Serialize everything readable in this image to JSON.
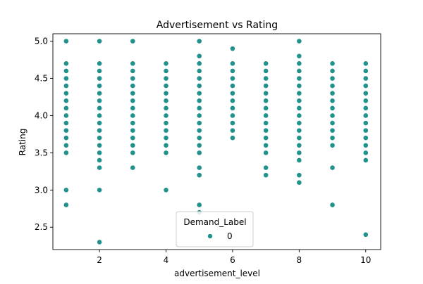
{
  "chart_data": {
    "type": "scatter",
    "title": "Advertisement vs Rating",
    "xlabel": "advertisement_level",
    "ylabel": "Rating",
    "xlim": [
      0.6,
      10.45
    ],
    "ylim": [
      2.2,
      5.1
    ],
    "x_ticks": [
      2,
      4,
      6,
      8,
      10
    ],
    "x_tick_labels": [
      "2",
      "4",
      "6",
      "8",
      "10"
    ],
    "y_ticks": [
      2.5,
      3.0,
      3.5,
      4.0,
      4.5,
      5.0
    ],
    "y_tick_labels": [
      "2.5",
      "3.0",
      "3.5",
      "4.0",
      "4.5",
      "5.0"
    ],
    "grid": false,
    "legend": {
      "title": "Demand_Label",
      "placement": "lower center",
      "entries": [
        {
          "label": "0",
          "color": "#21918c"
        }
      ]
    },
    "point_color": "#21918c",
    "series": [
      {
        "name": "0",
        "points": [
          {
            "x": 1,
            "y": 5.0
          },
          {
            "x": 1,
            "y": 4.7
          },
          {
            "x": 1,
            "y": 4.6
          },
          {
            "x": 1,
            "y": 4.5
          },
          {
            "x": 1,
            "y": 4.4
          },
          {
            "x": 1,
            "y": 4.3
          },
          {
            "x": 1,
            "y": 4.2
          },
          {
            "x": 1,
            "y": 4.1
          },
          {
            "x": 1,
            "y": 4.0
          },
          {
            "x": 1,
            "y": 3.9
          },
          {
            "x": 1,
            "y": 3.8
          },
          {
            "x": 1,
            "y": 3.7
          },
          {
            "x": 1,
            "y": 3.6
          },
          {
            "x": 1,
            "y": 3.5
          },
          {
            "x": 1,
            "y": 3.0
          },
          {
            "x": 1,
            "y": 2.8
          },
          {
            "x": 2,
            "y": 5.0
          },
          {
            "x": 2,
            "y": 4.7
          },
          {
            "x": 2,
            "y": 4.6
          },
          {
            "x": 2,
            "y": 4.5
          },
          {
            "x": 2,
            "y": 4.4
          },
          {
            "x": 2,
            "y": 4.3
          },
          {
            "x": 2,
            "y": 4.2
          },
          {
            "x": 2,
            "y": 4.1
          },
          {
            "x": 2,
            "y": 4.0
          },
          {
            "x": 2,
            "y": 3.9
          },
          {
            "x": 2,
            "y": 3.8
          },
          {
            "x": 2,
            "y": 3.7
          },
          {
            "x": 2,
            "y": 3.6
          },
          {
            "x": 2,
            "y": 3.5
          },
          {
            "x": 2,
            "y": 3.4
          },
          {
            "x": 2,
            "y": 3.3
          },
          {
            "x": 2,
            "y": 3.0
          },
          {
            "x": 2,
            "y": 2.3
          },
          {
            "x": 3,
            "y": 5.0
          },
          {
            "x": 3,
            "y": 4.7
          },
          {
            "x": 3,
            "y": 4.6
          },
          {
            "x": 3,
            "y": 4.5
          },
          {
            "x": 3,
            "y": 4.4
          },
          {
            "x": 3,
            "y": 4.3
          },
          {
            "x": 3,
            "y": 4.2
          },
          {
            "x": 3,
            "y": 4.1
          },
          {
            "x": 3,
            "y": 4.0
          },
          {
            "x": 3,
            "y": 3.9
          },
          {
            "x": 3,
            "y": 3.8
          },
          {
            "x": 3,
            "y": 3.7
          },
          {
            "x": 3,
            "y": 3.6
          },
          {
            "x": 3,
            "y": 3.5
          },
          {
            "x": 3,
            "y": 3.3
          },
          {
            "x": 4,
            "y": 4.7
          },
          {
            "x": 4,
            "y": 4.6
          },
          {
            "x": 4,
            "y": 4.5
          },
          {
            "x": 4,
            "y": 4.4
          },
          {
            "x": 4,
            "y": 4.3
          },
          {
            "x": 4,
            "y": 4.2
          },
          {
            "x": 4,
            "y": 4.1
          },
          {
            "x": 4,
            "y": 4.0
          },
          {
            "x": 4,
            "y": 3.9
          },
          {
            "x": 4,
            "y": 3.8
          },
          {
            "x": 4,
            "y": 3.7
          },
          {
            "x": 4,
            "y": 3.6
          },
          {
            "x": 4,
            "y": 3.5
          },
          {
            "x": 4,
            "y": 3.0
          },
          {
            "x": 5,
            "y": 5.0
          },
          {
            "x": 5,
            "y": 4.8
          },
          {
            "x": 5,
            "y": 4.7
          },
          {
            "x": 5,
            "y": 4.6
          },
          {
            "x": 5,
            "y": 4.5
          },
          {
            "x": 5,
            "y": 4.4
          },
          {
            "x": 5,
            "y": 4.3
          },
          {
            "x": 5,
            "y": 4.2
          },
          {
            "x": 5,
            "y": 4.1
          },
          {
            "x": 5,
            "y": 4.0
          },
          {
            "x": 5,
            "y": 3.9
          },
          {
            "x": 5,
            "y": 3.8
          },
          {
            "x": 5,
            "y": 3.7
          },
          {
            "x": 5,
            "y": 3.6
          },
          {
            "x": 5,
            "y": 3.5
          },
          {
            "x": 5,
            "y": 3.3
          },
          {
            "x": 5,
            "y": 3.2
          },
          {
            "x": 5,
            "y": 2.8
          },
          {
            "x": 5,
            "y": 2.7
          },
          {
            "x": 6,
            "y": 4.9
          },
          {
            "x": 6,
            "y": 4.7
          },
          {
            "x": 6,
            "y": 4.6
          },
          {
            "x": 6,
            "y": 4.5
          },
          {
            "x": 6,
            "y": 4.4
          },
          {
            "x": 6,
            "y": 4.3
          },
          {
            "x": 6,
            "y": 4.2
          },
          {
            "x": 6,
            "y": 4.1
          },
          {
            "x": 6,
            "y": 4.0
          },
          {
            "x": 6,
            "y": 3.9
          },
          {
            "x": 6,
            "y": 3.8
          },
          {
            "x": 6,
            "y": 3.7
          },
          {
            "x": 7,
            "y": 4.7
          },
          {
            "x": 7,
            "y": 4.6
          },
          {
            "x": 7,
            "y": 4.5
          },
          {
            "x": 7,
            "y": 4.4
          },
          {
            "x": 7,
            "y": 4.3
          },
          {
            "x": 7,
            "y": 4.2
          },
          {
            "x": 7,
            "y": 4.1
          },
          {
            "x": 7,
            "y": 4.0
          },
          {
            "x": 7,
            "y": 3.9
          },
          {
            "x": 7,
            "y": 3.8
          },
          {
            "x": 7,
            "y": 3.7
          },
          {
            "x": 7,
            "y": 3.6
          },
          {
            "x": 7,
            "y": 3.5
          },
          {
            "x": 7,
            "y": 3.3
          },
          {
            "x": 7,
            "y": 3.2
          },
          {
            "x": 8,
            "y": 5.0
          },
          {
            "x": 8,
            "y": 4.8
          },
          {
            "x": 8,
            "y": 4.7
          },
          {
            "x": 8,
            "y": 4.6
          },
          {
            "x": 8,
            "y": 4.5
          },
          {
            "x": 8,
            "y": 4.4
          },
          {
            "x": 8,
            "y": 4.3
          },
          {
            "x": 8,
            "y": 4.2
          },
          {
            "x": 8,
            "y": 4.1
          },
          {
            "x": 8,
            "y": 4.0
          },
          {
            "x": 8,
            "y": 3.9
          },
          {
            "x": 8,
            "y": 3.8
          },
          {
            "x": 8,
            "y": 3.7
          },
          {
            "x": 8,
            "y": 3.6
          },
          {
            "x": 8,
            "y": 3.5
          },
          {
            "x": 8,
            "y": 3.4
          },
          {
            "x": 8,
            "y": 3.2
          },
          {
            "x": 8,
            "y": 3.1
          },
          {
            "x": 9,
            "y": 4.7
          },
          {
            "x": 9,
            "y": 4.6
          },
          {
            "x": 9,
            "y": 4.5
          },
          {
            "x": 9,
            "y": 4.4
          },
          {
            "x": 9,
            "y": 4.3
          },
          {
            "x": 9,
            "y": 4.2
          },
          {
            "x": 9,
            "y": 4.1
          },
          {
            "x": 9,
            "y": 4.0
          },
          {
            "x": 9,
            "y": 3.9
          },
          {
            "x": 9,
            "y": 3.8
          },
          {
            "x": 9,
            "y": 3.7
          },
          {
            "x": 9,
            "y": 3.6
          },
          {
            "x": 9,
            "y": 3.3
          },
          {
            "x": 9,
            "y": 2.8
          },
          {
            "x": 10,
            "y": 4.7
          },
          {
            "x": 10,
            "y": 4.6
          },
          {
            "x": 10,
            "y": 4.5
          },
          {
            "x": 10,
            "y": 4.4
          },
          {
            "x": 10,
            "y": 4.3
          },
          {
            "x": 10,
            "y": 4.2
          },
          {
            "x": 10,
            "y": 4.1
          },
          {
            "x": 10,
            "y": 4.0
          },
          {
            "x": 10,
            "y": 3.9
          },
          {
            "x": 10,
            "y": 3.8
          },
          {
            "x": 10,
            "y": 3.7
          },
          {
            "x": 10,
            "y": 3.6
          },
          {
            "x": 10,
            "y": 3.5
          },
          {
            "x": 10,
            "y": 3.4
          },
          {
            "x": 10,
            "y": 2.4
          }
        ]
      }
    ]
  }
}
